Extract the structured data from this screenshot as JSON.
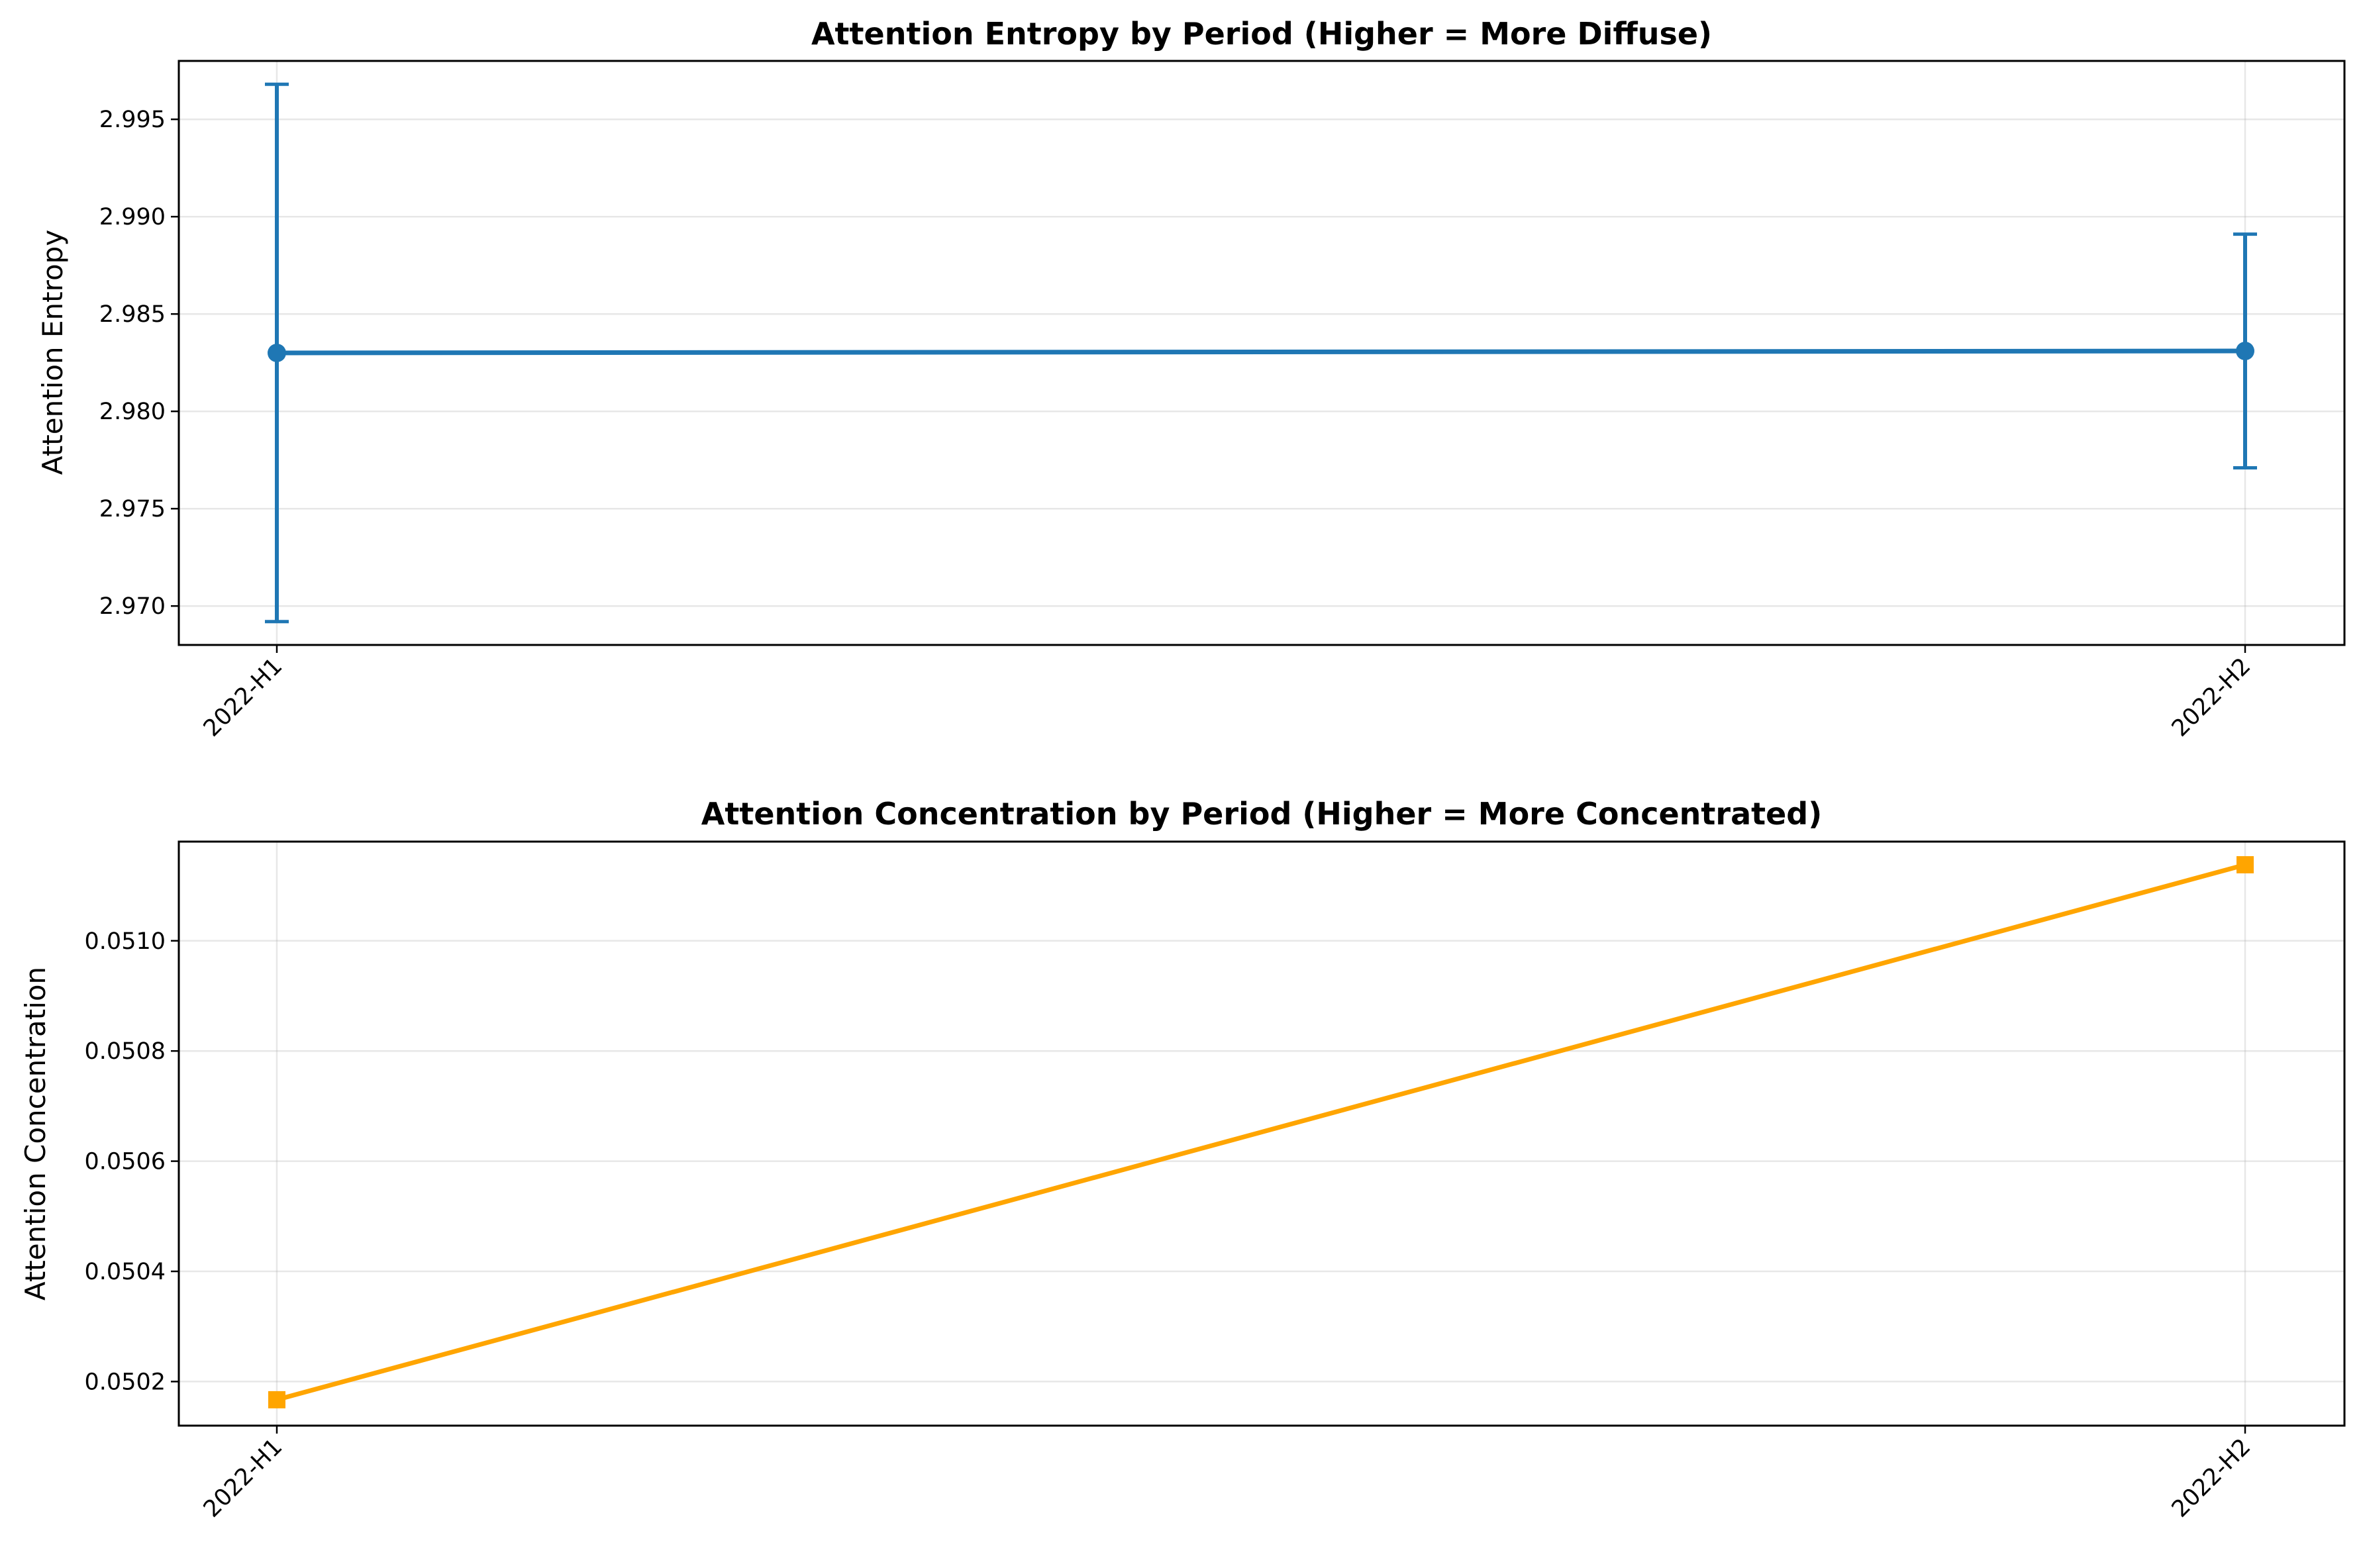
{
  "chart_data": [
    {
      "type": "line",
      "title": "Attention Entropy by Period (Higher = More Diffuse)",
      "xlabel": "",
      "ylabel": "Attention Entropy",
      "categories": [
        "2022-H1",
        "2022-H2"
      ],
      "series": [
        {
          "values": [
            2.983,
            2.9831
          ],
          "error": [
            0.0138,
            0.006
          ],
          "color": "#1f77b4",
          "marker": "circle",
          "error_bars": true
        }
      ],
      "ylim": [
        2.968,
        2.998
      ],
      "yticks": [
        2.97,
        2.975,
        2.98,
        2.985,
        2.99,
        2.995
      ],
      "ytick_labels": [
        "2.970",
        "2.975",
        "2.980",
        "2.985",
        "2.990",
        "2.995"
      ],
      "grid": true
    },
    {
      "type": "line",
      "title": "Attention Concentration by Period (Higher = More Concentrated)",
      "xlabel": "",
      "ylabel": "Attention Concentration",
      "categories": [
        "2022-H1",
        "2022-H2"
      ],
      "series": [
        {
          "values": [
            0.050167,
            0.051138
          ],
          "color": "#ffa500",
          "marker": "square"
        }
      ],
      "ylim": [
        0.05012,
        0.05118
      ],
      "yticks": [
        0.0502,
        0.0504,
        0.0506,
        0.0508,
        0.051
      ],
      "ytick_labels": [
        "0.0502",
        "0.0504",
        "0.0506",
        "0.0508",
        "0.0510"
      ],
      "grid": true
    }
  ]
}
